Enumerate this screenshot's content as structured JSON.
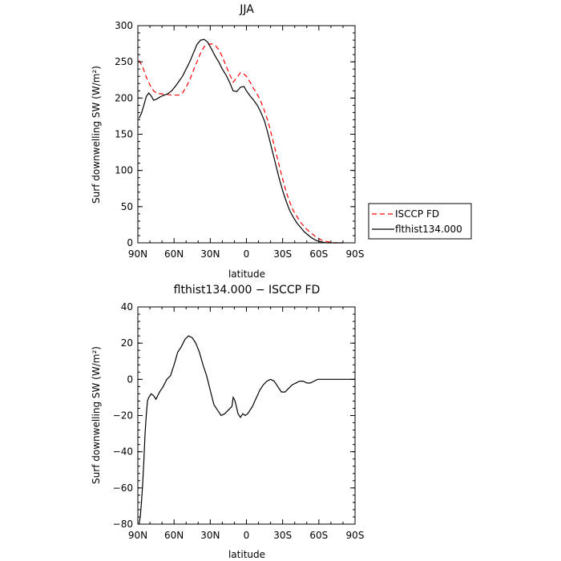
{
  "chart_data": [
    {
      "type": "line",
      "title": "JJA",
      "xlabel": "latitude",
      "ylabel": "Surf downwelling SW (W/m²)",
      "xlim": [
        90,
        -90
      ],
      "ylim": [
        0,
        300
      ],
      "x_ticks": [
        90,
        60,
        30,
        0,
        -30,
        -60,
        -90
      ],
      "x_tick_labels": [
        "90N",
        "60N",
        "30N",
        "0",
        "30S",
        "60S",
        "90S"
      ],
      "y_ticks": [
        0,
        50,
        100,
        150,
        200,
        250,
        300
      ],
      "y_tick_labels": [
        "0",
        "50",
        "100",
        "150",
        "200",
        "250",
        "300"
      ],
      "legend": "right",
      "series": [
        {
          "name": "ISCCP FD",
          "color": "#ff0000",
          "dash": "dashed",
          "x": [
            89,
            86,
            83,
            80,
            77,
            74,
            71,
            68,
            65,
            62,
            59,
            56,
            53,
            50,
            47,
            44,
            41,
            38,
            35,
            32,
            29,
            26,
            23,
            20,
            17,
            14,
            11,
            8,
            5,
            2,
            0,
            -3,
            -6,
            -9,
            -12,
            -15,
            -18,
            -21,
            -24,
            -27,
            -30,
            -33,
            -36,
            -39,
            -42,
            -45,
            -48,
            -51,
            -54,
            -57,
            -60,
            -63,
            -66,
            -69,
            -72,
            -75,
            -78,
            -80
          ],
          "y": [
            252,
            243,
            229,
            218,
            210,
            206,
            206,
            205,
            205,
            204,
            204,
            204,
            207,
            215,
            225,
            238,
            250,
            262,
            271,
            274,
            275,
            273,
            267,
            257,
            245,
            233,
            222,
            228,
            235,
            233,
            230,
            222,
            213,
            205,
            195,
            182,
            167,
            148,
            128,
            108,
            88,
            70,
            56,
            44,
            36,
            28,
            22,
            17,
            13,
            9,
            6,
            3,
            2,
            1,
            0,
            0,
            0,
            0
          ]
        },
        {
          "name": "flthist134.000",
          "color": "#000000",
          "dash": "solid",
          "x": [
            89,
            87,
            85,
            83,
            81,
            79,
            77,
            75,
            73,
            71,
            68,
            65,
            62,
            59,
            56,
            53,
            50,
            47,
            44,
            41,
            38,
            35,
            32,
            29,
            26,
            23,
            20,
            17,
            14,
            11,
            8,
            5,
            2,
            0,
            -3,
            -6,
            -9,
            -12,
            -15,
            -18,
            -21,
            -24,
            -27,
            -30,
            -33,
            -36,
            -39,
            -42,
            -45,
            -48,
            -51,
            -54,
            -57,
            -60,
            -63,
            -66,
            -69,
            -72,
            -75,
            -78,
            -80
          ],
          "y": [
            172,
            179,
            190,
            202,
            207,
            203,
            197,
            198,
            200,
            202,
            204,
            206,
            210,
            216,
            223,
            230,
            240,
            250,
            262,
            274,
            280,
            281,
            277,
            268,
            258,
            250,
            240,
            232,
            222,
            210,
            209,
            215,
            216,
            210,
            203,
            197,
            190,
            180,
            168,
            150,
            130,
            110,
            90,
            72,
            57,
            44,
            35,
            27,
            21,
            15,
            11,
            7,
            4,
            2,
            1,
            0,
            0,
            0,
            0,
            0,
            0
          ]
        }
      ]
    },
    {
      "type": "line",
      "title": "flthist134.000 − ISCCP FD",
      "xlabel": "latitude",
      "ylabel": "Surf downwelling SW (W/m²)",
      "xlim": [
        90,
        -90
      ],
      "ylim": [
        -80,
        40
      ],
      "x_ticks": [
        90,
        60,
        30,
        0,
        -30,
        -60,
        -90
      ],
      "x_tick_labels": [
        "90N",
        "60N",
        "30N",
        "0",
        "30S",
        "60S",
        "90S"
      ],
      "y_ticks": [
        -80,
        -60,
        -40,
        -20,
        0,
        20,
        40
      ],
      "y_tick_labels": [
        "−80",
        "−60",
        "−40",
        "−20",
        "0",
        "20",
        "40"
      ],
      "series": [
        {
          "color": "#000000",
          "dash": "solid",
          "x": [
            89,
            88,
            87,
            86,
            85,
            84,
            83,
            82,
            81,
            79,
            77,
            75,
            72,
            69,
            66,
            63,
            60,
            57,
            54,
            51,
            48,
            45,
            42,
            39,
            36,
            33,
            30,
            27,
            24,
            21,
            18,
            15,
            12,
            11,
            10,
            9,
            7,
            5,
            3,
            1,
            -1,
            -3,
            -5,
            -7,
            -9,
            -11,
            -14,
            -17,
            -20,
            -23,
            -26,
            -29,
            -32,
            -35,
            -38,
            -41,
            -44,
            -47,
            -50,
            -53,
            -56,
            -59,
            -62,
            -65,
            -68,
            -71,
            -74,
            -77,
            -80,
            -85,
            -90
          ],
          "y": [
            -80,
            -76,
            -68,
            -58,
            -45,
            -30,
            -20,
            -12,
            -10,
            -8,
            -9,
            -11,
            -7,
            -4,
            0,
            2,
            8,
            15,
            18,
            22,
            24,
            23,
            20,
            15,
            8,
            2,
            -6,
            -14,
            -17,
            -20,
            -19,
            -17,
            -15,
            -10,
            -11,
            -13,
            -19,
            -21,
            -19,
            -20,
            -19,
            -17,
            -15,
            -12,
            -9,
            -6,
            -3,
            -1,
            0,
            -1,
            -4,
            -7,
            -7,
            -5,
            -3,
            -2,
            -1,
            -1,
            -2,
            -2,
            -1,
            0,
            0,
            0,
            0,
            0,
            0,
            0,
            0,
            0,
            0
          ]
        }
      ]
    }
  ]
}
